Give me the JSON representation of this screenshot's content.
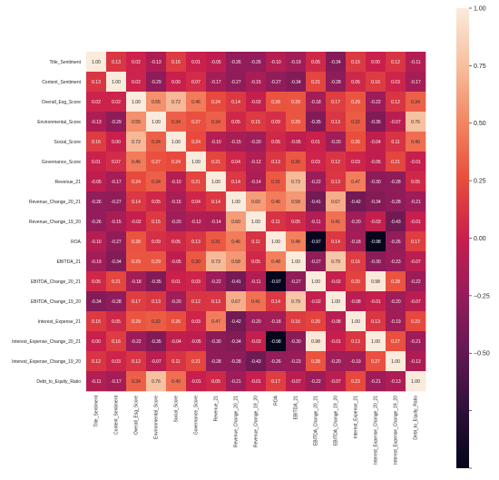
{
  "chart_data": {
    "type": "heatmap",
    "title": "",
    "xlabel": "",
    "ylabel": "",
    "labels": [
      "Title_Sentiment",
      "Content_Sentiment",
      "Overall_Esg_Score",
      "Environmental_Score",
      "Social_Score",
      "Governance_Score",
      "Revenue_21",
      "Revenue_Change_20_21",
      "Revenue_Change_19_20",
      "ROA",
      "EBITDA_21",
      "EBITDA_Change_20_21",
      "EBITDA_Change_19_20",
      "Interest_Expense_21",
      "Interest_Expense_Change_20_21",
      "Interest_Expense_Change_19_20",
      "Debt_to_Equity_Ratio"
    ],
    "values": [
      [
        1.0,
        0.13,
        0.02,
        -0.13,
        0.16,
        0.01,
        -0.05,
        -0.26,
        -0.26,
        -0.1,
        -0.19,
        0.05,
        -0.34,
        0.15,
        0.0,
        0.12,
        -0.11
      ],
      [
        0.13,
        1.0,
        0.02,
        -0.29,
        0.0,
        0.07,
        -0.17,
        -0.27,
        -0.15,
        -0.27,
        -0.34,
        0.21,
        -0.28,
        0.05,
        0.16,
        0.03,
        -0.17
      ],
      [
        0.02,
        0.02,
        1.0,
        0.55,
        0.72,
        0.46,
        0.24,
        0.14,
        -0.02,
        0.28,
        0.29,
        -0.18,
        0.17,
        0.29,
        -0.22,
        0.12,
        0.34
      ],
      [
        -0.13,
        -0.29,
        0.55,
        1.0,
        0.34,
        0.27,
        0.34,
        0.05,
        0.15,
        0.09,
        0.29,
        -0.35,
        0.13,
        0.32,
        -0.35,
        -0.07,
        0.76
      ],
      [
        0.16,
        0.0,
        0.72,
        0.34,
        1.0,
        0.24,
        -0.1,
        -0.15,
        -0.2,
        0.05,
        -0.05,
        0.01,
        -0.2,
        0.26,
        -0.04,
        0.11,
        0.4
      ],
      [
        0.01,
        0.07,
        0.46,
        0.27,
        0.24,
        1.0,
        0.21,
        0.04,
        -0.12,
        0.13,
        0.3,
        0.03,
        0.12,
        0.03,
        -0.05,
        0.21,
        -0.01
      ],
      [
        -0.05,
        -0.17,
        0.24,
        0.34,
        -0.1,
        0.21,
        1.0,
        0.14,
        -0.14,
        0.31,
        0.73,
        -0.22,
        0.13,
        0.47,
        -0.3,
        -0.28,
        0.05
      ],
      [
        -0.26,
        -0.27,
        0.14,
        0.05,
        -0.15,
        0.04,
        0.14,
        1.0,
        0.6,
        0.46,
        0.58,
        -0.41,
        0.67,
        -0.42,
        -0.34,
        -0.28,
        -0.21
      ],
      [
        -0.26,
        -0.15,
        -0.02,
        0.15,
        -0.2,
        -0.12,
        -0.14,
        0.6,
        1.0,
        0.11,
        0.05,
        -0.11,
        0.41,
        -0.2,
        -0.03,
        -0.43,
        -0.01
      ],
      [
        -0.1,
        -0.27,
        0.28,
        0.09,
        0.05,
        0.13,
        0.31,
        0.46,
        0.11,
        1.0,
        0.48,
        -0.97,
        0.14,
        -0.18,
        -0.98,
        -0.26,
        0.17
      ],
      [
        -0.19,
        -0.34,
        0.29,
        0.29,
        -0.05,
        0.3,
        0.73,
        0.58,
        0.05,
        0.48,
        1.0,
        -0.27,
        0.79,
        0.16,
        -0.3,
        -0.23,
        -0.07
      ],
      [
        0.05,
        0.21,
        -0.18,
        -0.35,
        0.01,
        0.03,
        -0.22,
        -0.41,
        -0.11,
        -0.97,
        -0.27,
        1.0,
        -0.02,
        0.2,
        0.98,
        0.28,
        -0.22
      ],
      [
        -0.34,
        -0.28,
        0.17,
        0.13,
        -0.2,
        0.12,
        0.13,
        0.67,
        0.41,
        0.14,
        0.79,
        -0.02,
        1.0,
        -0.08,
        -0.01,
        -0.2,
        -0.07
      ],
      [
        0.15,
        0.05,
        0.29,
        0.32,
        0.26,
        0.03,
        0.47,
        -0.42,
        -0.2,
        -0.18,
        0.16,
        0.2,
        -0.08,
        1.0,
        0.13,
        -0.19,
        0.23
      ],
      [
        0.0,
        0.16,
        -0.22,
        -0.35,
        -0.04,
        -0.05,
        -0.3,
        -0.34,
        -0.03,
        -0.98,
        -0.3,
        0.98,
        -0.01,
        0.13,
        1.0,
        0.27,
        -0.21
      ],
      [
        0.12,
        0.03,
        0.12,
        -0.07,
        0.11,
        0.21,
        -0.28,
        -0.28,
        -0.43,
        -0.26,
        -0.23,
        0.28,
        -0.2,
        -0.19,
        0.27,
        1.0,
        -0.13
      ],
      [
        -0.11,
        -0.17,
        0.34,
        0.76,
        0.4,
        -0.01,
        0.05,
        -0.21,
        -0.01,
        0.17,
        -0.07,
        -0.22,
        -0.07,
        0.23,
        -0.21,
        -0.13,
        1.0
      ]
    ],
    "value_format": "2dp",
    "vmin": -1.0,
    "vmax": 1.0,
    "colormap": "rocket",
    "colorbar": {
      "ticks": [
        -1.0,
        -0.75,
        -0.5,
        -0.25,
        0.0,
        0.25,
        0.5,
        0.75,
        1.0
      ],
      "tick_labels": [
        "",
        "",
        "−0.50",
        "−0.25",
        "0.00",
        "0.25",
        "0.50",
        "0.75",
        "1.00"
      ],
      "placement": "right"
    },
    "grid": false,
    "legend": "none"
  }
}
